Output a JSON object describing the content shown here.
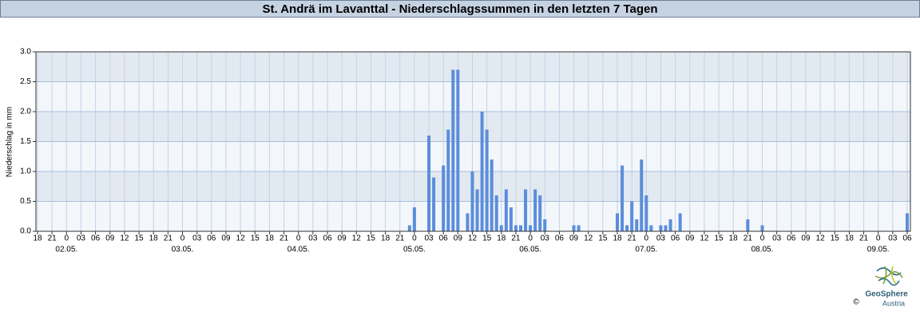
{
  "chart_data": {
    "type": "bar",
    "title": "St. Andrä im Lavanttal - Niederschlagssummen in den letzten 7 Tagen",
    "y_label": "Niederschlag in mm",
    "color": "#5b8ddb",
    "grid": true,
    "ylim": [
      0,
      3
    ],
    "yticks": [
      {
        "value": 0,
        "label": "0.0"
      },
      0.5,
      {
        "value": 1,
        "label": "1.0"
      },
      1.5,
      {
        "value": 2,
        "label": "2.0"
      },
      2.5,
      {
        "value": 3,
        "label": "3.0"
      }
    ],
    "categories": [
      "18",
      null,
      null,
      "21",
      null,
      null,
      "0",
      null,
      null,
      "03",
      null,
      null,
      "06",
      null,
      null,
      "09",
      null,
      null,
      "12",
      null,
      null,
      "15",
      null,
      null,
      "18",
      null,
      null,
      "21",
      null,
      null,
      "0",
      null,
      null,
      "03",
      null,
      null,
      "06",
      null,
      null,
      "09",
      null,
      null,
      "12",
      null,
      null,
      "15",
      null,
      null,
      "18",
      null,
      null,
      "21",
      null,
      null,
      "0",
      null,
      null,
      "03",
      null,
      null,
      "06",
      null,
      null,
      "09",
      null,
      null,
      "12",
      null,
      null,
      "15",
      null,
      null,
      "18",
      null,
      null,
      "21",
      null,
      null,
      "0",
      null,
      null,
      "03",
      null,
      null,
      "06",
      null,
      null,
      "09",
      null,
      null,
      "12",
      null,
      null,
      "15",
      null,
      null,
      "18",
      null,
      null,
      "21",
      null,
      null,
      "0",
      null,
      null,
      "03",
      null,
      null,
      "06",
      null,
      null,
      "09",
      null,
      null,
      "12",
      null,
      null,
      "15",
      null,
      null,
      "18",
      null,
      null,
      "21",
      null,
      null,
      "0",
      null,
      null,
      "03",
      null,
      null,
      "06",
      null,
      null,
      "09",
      null,
      null,
      "12",
      null,
      null,
      "15",
      null,
      null,
      "18",
      null,
      null,
      "21",
      null,
      null,
      "0",
      null,
      null,
      "03",
      null,
      null,
      "06",
      null,
      null,
      "09",
      null,
      null,
      "12",
      null,
      null,
      "15",
      null,
      null,
      "18",
      null,
      null,
      "21",
      null,
      null,
      "0",
      null,
      null,
      "03",
      null,
      null,
      "06"
    ],
    "values": [
      0,
      0,
      0,
      0,
      0,
      0,
      0,
      0,
      0,
      0,
      0,
      0,
      0,
      0,
      0,
      0,
      0,
      0,
      0,
      0,
      0,
      0,
      0,
      0,
      0,
      0,
      0,
      0,
      0,
      0,
      0,
      0,
      0,
      0,
      0,
      0,
      0,
      0,
      0,
      0,
      0,
      0,
      0,
      0,
      0,
      0,
      0,
      0,
      0,
      0,
      0,
      0,
      0,
      0,
      0,
      0,
      0,
      0,
      0,
      0,
      0,
      0,
      0,
      0,
      0,
      0,
      0,
      0,
      0,
      0,
      0,
      0,
      0,
      0,
      0,
      0,
      0,
      0.1,
      0.4,
      0,
      0,
      1.6,
      0.9,
      0,
      1.1,
      1.7,
      2.7,
      2.7,
      0,
      0.3,
      1.0,
      0.7,
      2.0,
      1.7,
      1.2,
      0.6,
      0.1,
      0.7,
      0.4,
      0.1,
      0.1,
      0.7,
      0.1,
      0.7,
      0.6,
      0.2,
      0,
      0,
      0,
      0,
      0,
      0.1,
      0.1,
      0,
      0,
      0,
      0,
      0,
      0,
      0,
      0.3,
      1.1,
      0.1,
      0.5,
      0.2,
      1.2,
      0.6,
      0.1,
      0,
      0.1,
      0.1,
      0.2,
      0,
      0.3,
      0,
      0,
      0,
      0,
      0,
      0,
      0,
      0,
      0,
      0,
      0,
      0,
      0,
      0.2,
      0,
      0,
      0.1,
      0,
      0,
      0,
      0,
      0,
      0,
      0,
      0,
      0,
      0,
      0,
      0,
      0,
      0,
      0,
      0,
      0,
      0,
      0,
      0,
      0,
      0,
      0,
      0,
      0,
      0,
      0,
      0,
      0,
      0.3
    ],
    "date_labels": [
      "02.05.",
      "03.05.",
      "04.05.",
      "05.05.",
      "06.05.",
      "07.05.",
      "08.05.",
      "09.05."
    ]
  },
  "logo": {
    "name": "GeoSphere",
    "sub": "Austria",
    "copyright": "©"
  }
}
